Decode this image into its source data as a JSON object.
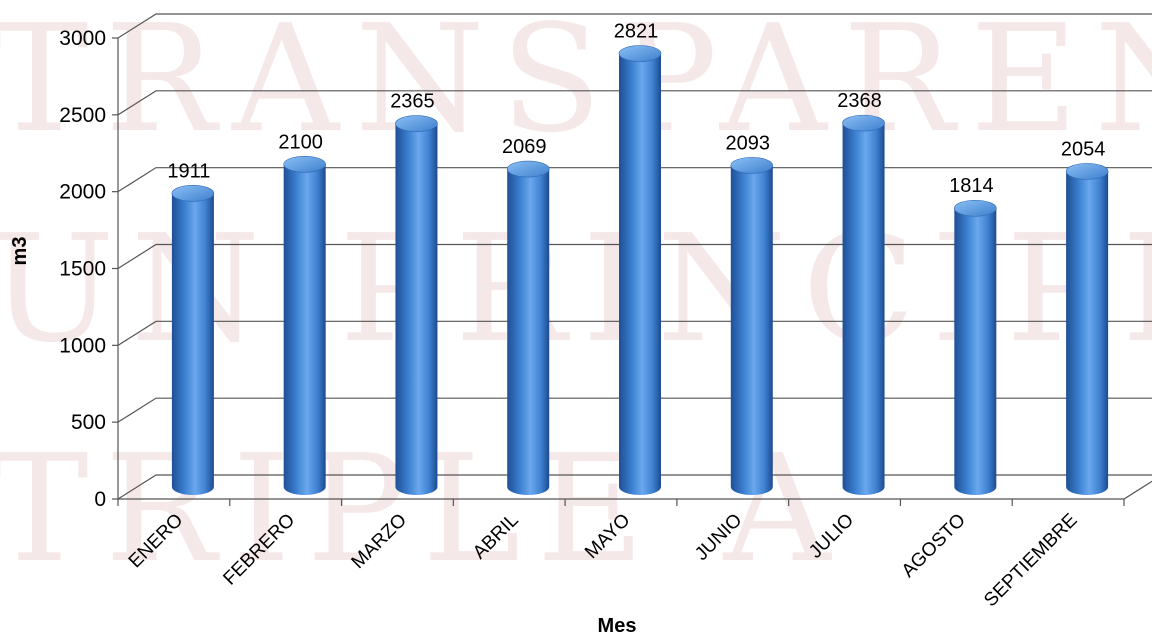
{
  "watermark": {
    "lines": [
      "TRANSPAREN",
      "UN PRINCIPIO",
      "TRIPLE A"
    ]
  },
  "chart_data": {
    "type": "bar",
    "title": "",
    "xlabel": "Mes",
    "ylabel": "m3",
    "categories": [
      "ENERO",
      "FEBRERO",
      "MARZO",
      "ABRIL",
      "MAYO",
      "JUNIO",
      "JULIO",
      "AGOSTO",
      "SEPTIEMBRE"
    ],
    "values": [
      1911,
      2100,
      2365,
      2069,
      2821,
      2093,
      2368,
      1814,
      2054
    ],
    "ylim": [
      0,
      3000
    ],
    "yticks": [
      0,
      500,
      1000,
      1500,
      2000,
      2500,
      3000
    ],
    "grid": true,
    "legend": "none",
    "bar_color": "#4a8fd8",
    "style": "3d-cylinder"
  }
}
